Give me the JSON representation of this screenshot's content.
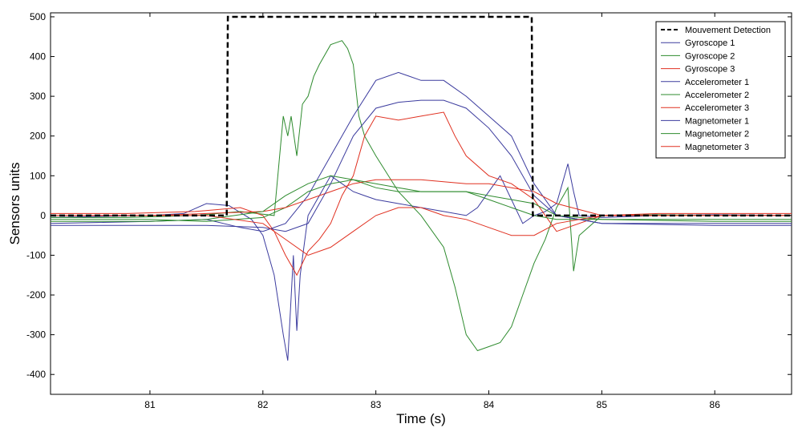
{
  "chart_data": {
    "type": "line",
    "title": "",
    "xlabel": "Time (s)",
    "ylabel": "Sensors units",
    "xlim": [
      80.12,
      86.68
    ],
    "ylim": [
      -450,
      510
    ],
    "xticks": [
      81,
      82,
      83,
      84,
      85,
      86
    ],
    "yticks": [
      -400,
      -300,
      -200,
      -100,
      0,
      100,
      200,
      300,
      400,
      500
    ],
    "grid": false,
    "legend_position": "top-right",
    "series": [
      {
        "name": "Mouvement Detection",
        "color": "#000000",
        "style": "dashed",
        "x": [
          80.12,
          81.68,
          81.69,
          84.38,
          84.39,
          86.68
        ],
        "y": [
          0,
          0,
          500,
          500,
          0,
          0
        ]
      },
      {
        "name": "Gyroscope 1",
        "color": "#3b3b9e",
        "x": [
          80.12,
          80.6,
          81.0,
          81.3,
          81.5,
          81.7,
          81.9,
          82.0,
          82.1,
          82.18,
          82.22,
          82.27,
          82.3,
          82.33,
          82.4,
          82.5,
          82.6,
          82.7,
          82.8,
          82.9,
          83.0,
          83.2,
          83.4,
          83.6,
          83.8,
          83.9,
          84.0,
          84.1,
          84.2,
          84.3,
          84.4,
          84.5,
          84.6,
          84.65,
          84.7,
          84.75,
          84.8,
          85.0,
          85.5,
          86.0,
          86.68
        ],
        "y": [
          -5,
          -2,
          0,
          5,
          30,
          25,
          -10,
          -50,
          -150,
          -300,
          -365,
          -100,
          -290,
          -150,
          0,
          50,
          100,
          80,
          60,
          50,
          40,
          30,
          20,
          10,
          0,
          20,
          60,
          100,
          40,
          -20,
          0,
          10,
          30,
          80,
          130,
          60,
          0,
          -5,
          0,
          2,
          0
        ]
      },
      {
        "name": "Gyroscope 2",
        "color": "#2e8b2e",
        "x": [
          80.12,
          80.8,
          81.4,
          81.8,
          82.1,
          82.18,
          82.22,
          82.25,
          82.3,
          82.35,
          82.4,
          82.45,
          82.5,
          82.6,
          82.7,
          82.75,
          82.8,
          82.85,
          82.9,
          83.0,
          83.2,
          83.4,
          83.6,
          83.7,
          83.8,
          83.9,
          84.0,
          84.1,
          84.2,
          84.3,
          84.4,
          84.5,
          84.6,
          84.7,
          84.75,
          84.8,
          85.0,
          85.5,
          86.0,
          86.68
        ],
        "y": [
          -5,
          -5,
          0,
          10,
          0,
          250,
          200,
          250,
          150,
          280,
          300,
          350,
          380,
          430,
          440,
          420,
          380,
          250,
          200,
          150,
          60,
          0,
          -80,
          -180,
          -300,
          -340,
          -330,
          -320,
          -280,
          -200,
          -120,
          -60,
          20,
          70,
          -140,
          -50,
          0,
          2,
          0,
          0
        ]
      },
      {
        "name": "Gyroscope 3",
        "color": "#e03020",
        "x": [
          80.12,
          80.8,
          81.4,
          81.8,
          82.0,
          82.1,
          82.2,
          82.3,
          82.4,
          82.5,
          82.6,
          82.7,
          82.8,
          82.9,
          83.0,
          83.2,
          83.4,
          83.6,
          83.7,
          83.8,
          84.0,
          84.2,
          84.4,
          84.5,
          84.6,
          85.0,
          85.5,
          86.0,
          86.68
        ],
        "y": [
          5,
          5,
          10,
          20,
          0,
          -40,
          -100,
          -150,
          -90,
          -60,
          -20,
          50,
          100,
          200,
          250,
          240,
          250,
          260,
          200,
          150,
          100,
          80,
          40,
          0,
          -40,
          0,
          5,
          5,
          5
        ]
      },
      {
        "name": "Accelerometer 1",
        "color": "#3b3b9e",
        "x": [
          80.12,
          81.0,
          81.5,
          81.8,
          82.0,
          82.2,
          82.4,
          82.6,
          82.8,
          83.0,
          83.2,
          83.4,
          83.6,
          83.8,
          84.0,
          84.2,
          84.4,
          84.6,
          85.0,
          86.0,
          86.68
        ],
        "y": [
          -20,
          -15,
          -10,
          -30,
          -40,
          -20,
          50,
          150,
          250,
          340,
          360,
          340,
          340,
          300,
          250,
          200,
          80,
          0,
          -20,
          -20,
          -20
        ]
      },
      {
        "name": "Accelerometer 2",
        "color": "#2e8b2e",
        "x": [
          80.12,
          81.0,
          81.5,
          82.0,
          82.2,
          82.4,
          82.6,
          82.8,
          83.0,
          83.2,
          83.4,
          83.6,
          83.8,
          84.0,
          84.2,
          84.4,
          84.6,
          85.0,
          86.0,
          86.68
        ],
        "y": [
          -10,
          -10,
          -15,
          -5,
          20,
          60,
          80,
          90,
          70,
          60,
          60,
          60,
          60,
          40,
          20,
          0,
          -10,
          -10,
          -10,
          -10
        ]
      },
      {
        "name": "Accelerometer 3",
        "color": "#e03020",
        "x": [
          80.12,
          81.0,
          81.5,
          82.0,
          82.2,
          82.4,
          82.6,
          82.8,
          83.0,
          83.2,
          83.4,
          83.6,
          83.8,
          84.0,
          84.2,
          84.4,
          84.6,
          85.0,
          86.0,
          86.68
        ],
        "y": [
          0,
          0,
          5,
          10,
          20,
          40,
          60,
          80,
          90,
          90,
          90,
          85,
          80,
          80,
          70,
          60,
          30,
          0,
          0,
          0
        ]
      },
      {
        "name": "Magnetometer 1",
        "color": "#3b3b9e",
        "x": [
          80.12,
          81.0,
          81.5,
          82.0,
          82.2,
          82.4,
          82.6,
          82.8,
          83.0,
          83.2,
          83.4,
          83.6,
          83.8,
          84.0,
          84.2,
          84.4,
          84.6,
          85.0,
          86.0,
          86.68
        ],
        "y": [
          -25,
          -25,
          -25,
          -30,
          -40,
          -20,
          80,
          200,
          270,
          285,
          290,
          290,
          270,
          220,
          150,
          50,
          0,
          -20,
          -25,
          -25
        ]
      },
      {
        "name": "Magnetometer 2",
        "color": "#2e8b2e",
        "x": [
          80.12,
          81.0,
          81.5,
          82.0,
          82.2,
          82.4,
          82.6,
          82.8,
          83.0,
          83.2,
          83.4,
          83.6,
          83.8,
          84.0,
          84.2,
          84.4,
          84.6,
          85.0,
          86.0,
          86.68
        ],
        "y": [
          -15,
          -15,
          -10,
          10,
          50,
          80,
          100,
          90,
          80,
          70,
          60,
          60,
          60,
          50,
          40,
          30,
          0,
          -10,
          -15,
          -15
        ]
      },
      {
        "name": "Magnetometer 3",
        "color": "#e03020",
        "x": [
          80.12,
          81.0,
          81.5,
          82.0,
          82.2,
          82.4,
          82.6,
          82.8,
          83.0,
          83.2,
          83.4,
          83.6,
          83.8,
          84.0,
          84.2,
          84.4,
          84.6,
          85.0,
          86.0,
          86.68
        ],
        "y": [
          0,
          0,
          0,
          -20,
          -60,
          -100,
          -80,
          -40,
          0,
          20,
          20,
          0,
          -10,
          -30,
          -50,
          -50,
          -20,
          0,
          0,
          0
        ]
      }
    ]
  }
}
